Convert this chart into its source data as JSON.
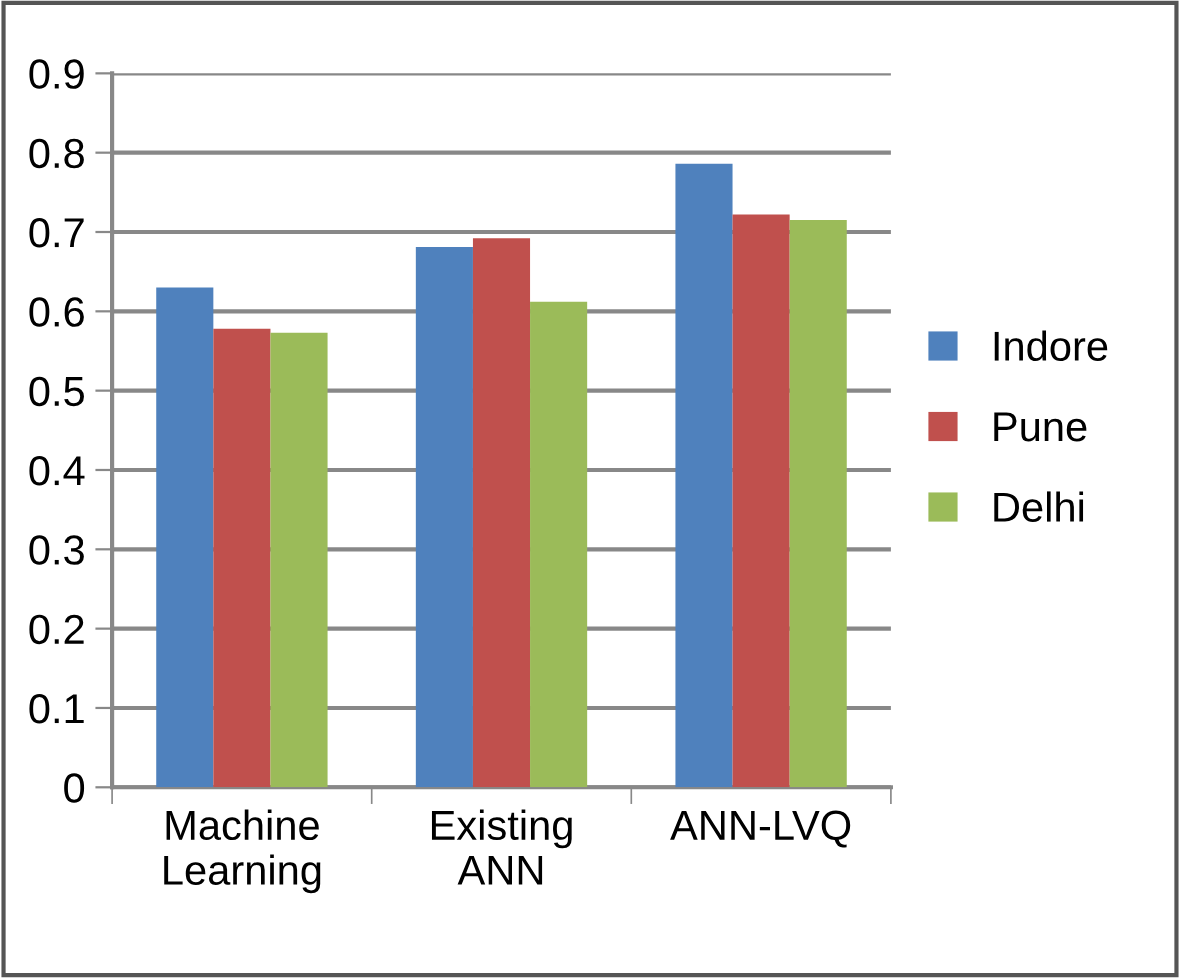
{
  "chart_data": {
    "type": "bar",
    "categories": [
      "Machine\nLearning",
      "Existing\nANN",
      "ANN-LVQ"
    ],
    "series": [
      {
        "name": "Indore",
        "color": "#4f81bd",
        "values": [
          0.63,
          0.681,
          0.786
        ]
      },
      {
        "name": "Pune",
        "color": "#c0504d",
        "values": [
          0.578,
          0.692,
          0.722
        ]
      },
      {
        "name": "Delhi",
        "color": "#9bbb59",
        "values": [
          0.573,
          0.612,
          0.715
        ]
      }
    ],
    "ylim": [
      0,
      0.9
    ],
    "yticks": [
      0,
      0.1,
      0.2,
      0.3,
      0.4,
      0.5,
      0.6,
      0.7,
      0.8,
      0.9
    ],
    "grid": "y",
    "legend": "right"
  }
}
